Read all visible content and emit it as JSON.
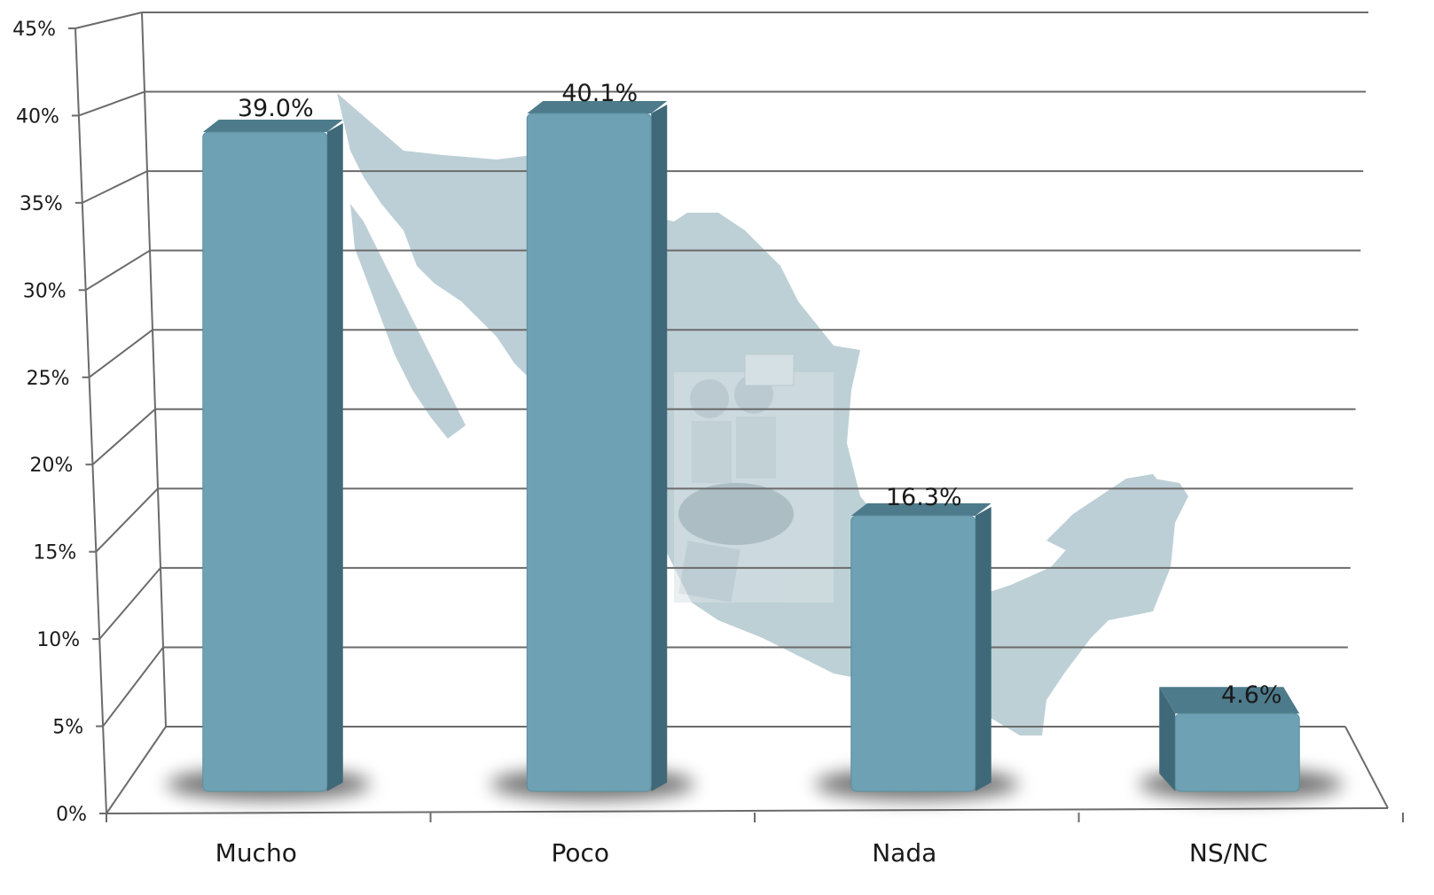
{
  "chart_data": {
    "type": "bar",
    "categories": [
      "Mucho",
      "Poco",
      "Nada",
      "NS/NC"
    ],
    "values": [
      39.0,
      40.1,
      16.3,
      4.6
    ],
    "data_labels": [
      "39.0%",
      "40.1%",
      "16.3%",
      "4.6%"
    ],
    "title": "",
    "xlabel": "",
    "ylabel": "",
    "ylim": [
      0,
      45
    ],
    "yticks": [
      0,
      5,
      10,
      15,
      20,
      25,
      30,
      35,
      40,
      45
    ],
    "ytick_labels": [
      "0%",
      "5%",
      "10%",
      "15%",
      "20%",
      "25%",
      "30%",
      "35%",
      "40%",
      "45%"
    ],
    "grid": true,
    "style": "3d",
    "background": "map of Mexico with illustration",
    "colors": {
      "bar_front": "#6da1b3",
      "bar_side": "#3f6978",
      "bar_top": "#4d7b8b",
      "grid": "#6b6b6b",
      "map": "#b9cdd4"
    }
  }
}
